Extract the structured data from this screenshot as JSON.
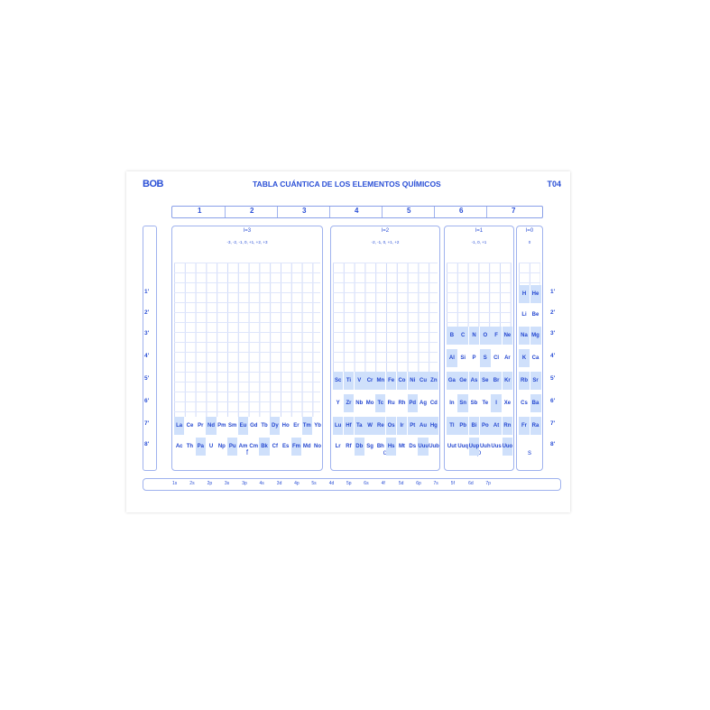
{
  "header": {
    "brand": "BOB",
    "title": "TABLA CUÁNTICA DE LOS ELEMENTOS QUÍMICOS",
    "code": "T04"
  },
  "ruler": [
    "1",
    "2",
    "3",
    "4",
    "5",
    "6",
    "7"
  ],
  "levels": [
    "1'",
    "2'",
    "3'",
    "4'",
    "5'",
    "6'",
    "7'",
    "8'"
  ],
  "blocks": [
    {
      "key": "f",
      "l": "l=3",
      "m": "-3, -2, -1, 0, +1, +2, +3",
      "letter": "f",
      "start_level": 7,
      "rows": [
        [
          "La",
          "Ce",
          "Pr",
          "Nd",
          "Pm",
          "Sm",
          "Eu",
          "Gd",
          "Tb",
          "Dy",
          "Ho",
          "Er",
          "Tm",
          "Yb"
        ],
        [
          "Ac",
          "Th",
          "Pa",
          "U",
          "Np",
          "Pu",
          "Am",
          "Cm",
          "Bk",
          "Cf",
          "Es",
          "Fm",
          "Md",
          "No"
        ]
      ]
    },
    {
      "key": "d",
      "l": "l=2",
      "m": "-2, -1, 0, +1, +2",
      "letter": "d",
      "start_level": 5,
      "rows": [
        [
          "Sc",
          "Ti",
          "V",
          "Cr",
          "Mn",
          "Fe",
          "Co",
          "Ni",
          "Cu",
          "Zn"
        ],
        [
          "Y",
          "Zr",
          "Nb",
          "Mo",
          "Tc",
          "Ru",
          "Rh",
          "Pd",
          "Ag",
          "Cd"
        ],
        [
          "Lu",
          "Hf",
          "Ta",
          "W",
          "Re",
          "Os",
          "Ir",
          "Pt",
          "Au",
          "Hg"
        ],
        [
          "Lr",
          "Rf",
          "Db",
          "Sg",
          "Bh",
          "Hs",
          "Mt",
          "Ds",
          "Uuu",
          "Uub"
        ]
      ]
    },
    {
      "key": "p",
      "l": "l=1",
      "m": "-1, 0, +1",
      "letter": "p",
      "start_level": 3,
      "rows": [
        [
          "B",
          "C",
          "N",
          "O",
          "F",
          "Ne"
        ],
        [
          "Al",
          "Si",
          "P",
          "S",
          "Cl",
          "Ar"
        ],
        [
          "Ga",
          "Ge",
          "As",
          "Se",
          "Br",
          "Kr"
        ],
        [
          "In",
          "Sn",
          "Sb",
          "Te",
          "I",
          "Xe"
        ],
        [
          "Tl",
          "Pb",
          "Bi",
          "Po",
          "At",
          "Rn"
        ],
        [
          "Uut",
          "Uuq",
          "Uup",
          "Uuh",
          "Uus",
          "Uuo"
        ]
      ]
    },
    {
      "key": "s",
      "l": "l=0",
      "m": "0",
      "letter": "s",
      "start_level": 1,
      "rows": [
        [
          "H",
          "He"
        ],
        [
          "Li",
          "Be"
        ],
        [
          "Na",
          "Mg"
        ],
        [
          "K",
          "Ca"
        ],
        [
          "Rb",
          "Sr"
        ],
        [
          "Cs",
          "Ba"
        ],
        [
          "Fr",
          "Ra"
        ]
      ]
    }
  ],
  "orbitals": [
    "1s",
    "2s",
    "2p",
    "3s",
    "3p",
    "4s",
    "3d",
    "4p",
    "5s",
    "4d",
    "5p",
    "6s",
    "4f",
    "5d",
    "6p",
    "7s",
    "5f",
    "6d",
    "7p"
  ],
  "colors": {
    "ink": "#2a4fd6",
    "shade": "#cfe0fb",
    "line": "#9fb2ee"
  }
}
